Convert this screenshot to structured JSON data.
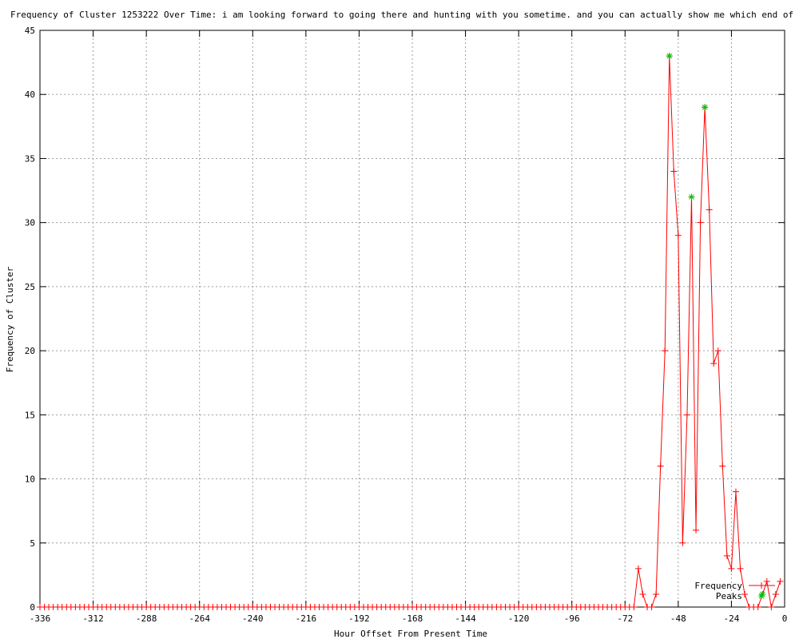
{
  "chart_data": {
    "type": "line",
    "title": "Frequency of Cluster 1253222 Over Time: i am looking forward to going there and hunting with you sometime. and you can actually show me which end of the rifle to poi",
    "xlabel": "Hour Offset From Present Time",
    "ylabel": "Frequency of Cluster",
    "xlim": [
      -336,
      0
    ],
    "ylim": [
      0,
      45
    ],
    "xticks": [
      -336,
      -312,
      -288,
      -264,
      -240,
      -216,
      -192,
      -168,
      -144,
      -120,
      -96,
      -72,
      -48,
      -24,
      0
    ],
    "yticks": [
      0,
      5,
      10,
      15,
      20,
      25,
      30,
      35,
      40,
      45
    ],
    "grid": true,
    "legend_placement": "bottom-right",
    "series": [
      {
        "name": "Frequency",
        "color": "#ff0000",
        "style": "linespoints",
        "zero_from": -336,
        "zero_to": -68,
        "x": [
          -66,
          -64,
          -62,
          -60,
          -58,
          -56,
          -54,
          -52,
          -50,
          -48,
          -46,
          -44,
          -42,
          -40,
          -38,
          -36,
          -34,
          -32,
          -30,
          -28,
          -26,
          -24,
          -22,
          -20,
          -18,
          -16,
          -14,
          -12,
          -10,
          -8,
          -6,
          -4,
          -2
        ],
        "y": [
          3,
          1,
          0,
          0,
          1,
          11,
          20,
          43,
          34,
          29,
          5,
          15,
          32,
          6,
          30,
          39,
          31,
          19,
          20,
          11,
          4,
          3,
          9,
          3,
          1,
          0,
          0,
          0,
          1,
          2,
          0,
          1,
          2
        ]
      },
      {
        "name": "Peaks",
        "color": "#00c000",
        "style": "points",
        "x": [
          -52,
          -42,
          -36,
          -10
        ],
        "y": [
          43,
          32,
          39,
          1
        ]
      }
    ]
  }
}
